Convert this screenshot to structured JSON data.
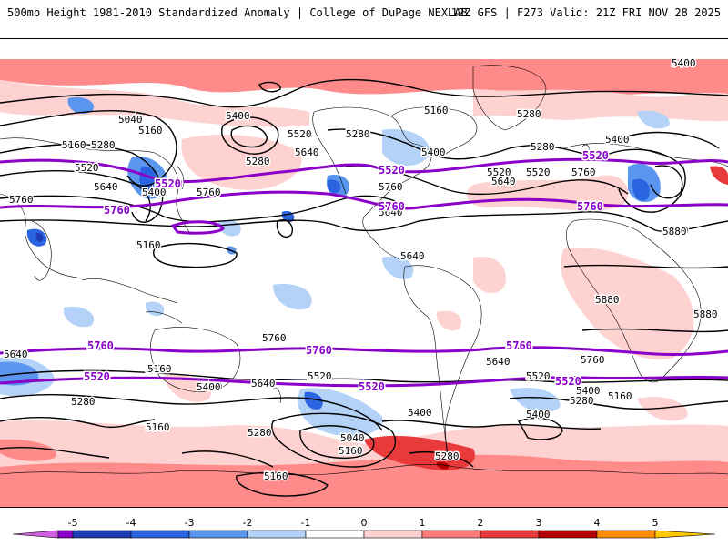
{
  "header": {
    "title_left": "500mb Height 1981-2010 Standardized Anomaly | College of DuPage NEXLAB",
    "title_right": "12Z GFS | F273 Valid: 21Z FRI NOV 28 2025"
  },
  "map": {
    "contour_labels_black": [
      "5400",
      "5160",
      "5280",
      "5040",
      "5160",
      "5160",
      "5280",
      "5520",
      "5640",
      "5400",
      "5760",
      "5880",
      "5280",
      "5640",
      "5280",
      "5400",
      "5160",
      "5760",
      "5520",
      "5640",
      "5400",
      "5280",
      "5760",
      "5640",
      "5520",
      "5400",
      "5280",
      "5160",
      "5040",
      "5160",
      "5400",
      "5640",
      "5760",
      "5880",
      "5880",
      "5280",
      "5520",
      "5400",
      "5160",
      "5280",
      "5400",
      "5160",
      "5520",
      "5280",
      "5640",
      "5760",
      "5640",
      "5520",
      "5280",
      "5400",
      "5160",
      "5880",
      "5640",
      "5760",
      "5520",
      "5400"
    ],
    "contour_labels_purple": [
      "5520",
      "5760",
      "5520",
      "5760",
      "5520",
      "5760",
      "5520",
      "5760",
      "5760",
      "5760",
      "5520",
      "5520",
      "5520",
      "5760",
      "5760"
    ]
  },
  "colorbar": {
    "ticks": [
      "-5",
      "-4",
      "-3",
      "-2",
      "-1",
      "0",
      "1",
      "2",
      "3",
      "4",
      "5"
    ],
    "colors": [
      "#d060e0",
      "#8a00c8",
      "#1e3cb4",
      "#2a64e0",
      "#5a96ee",
      "#b4d2f8",
      "#ffffff",
      "#ffd2d2",
      "#ff7a7a",
      "#e83a3a",
      "#b40000",
      "#ff8c00",
      "#ffc800"
    ]
  }
}
